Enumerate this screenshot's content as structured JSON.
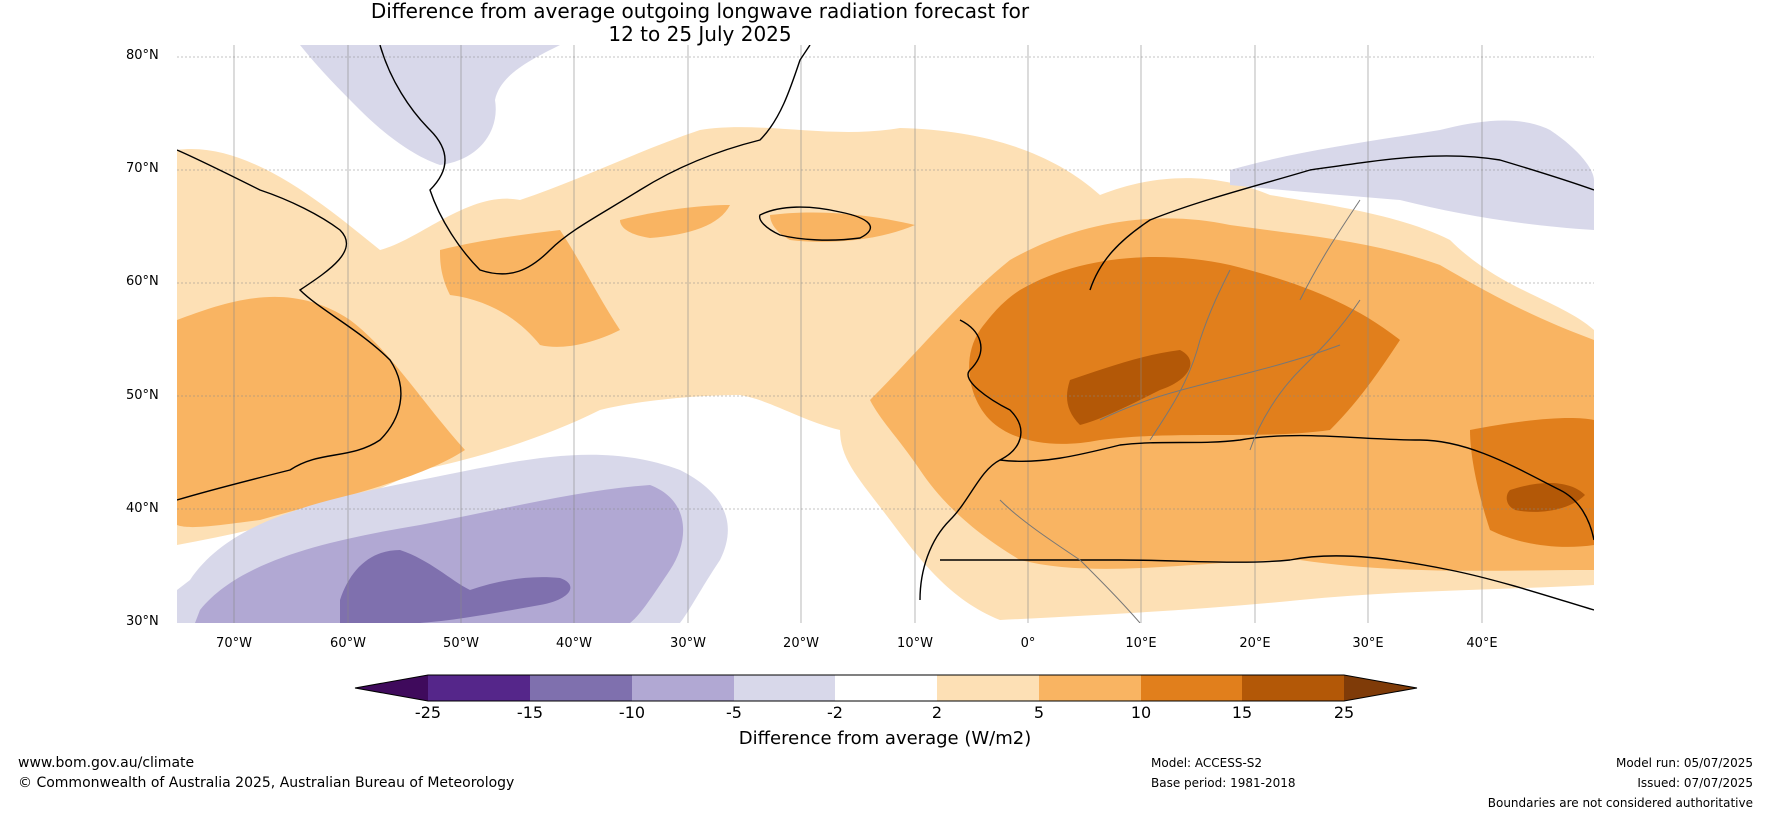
{
  "title": {
    "line1": "Difference from average outgoing longwave radiation forecast for",
    "line2": "12 to 25 July 2025"
  },
  "map": {
    "lat_labels": [
      "80°N",
      "70°N",
      "60°N",
      "50°N",
      "40°N",
      "30°N"
    ],
    "lon_labels": [
      "70°W",
      "60°W",
      "50°W",
      "40°W",
      "30°W",
      "20°W",
      "10°W",
      "0°",
      "10°E",
      "20°E",
      "30°E",
      "40°E"
    ]
  },
  "colorbar": {
    "title": "Difference from average (W/m2)",
    "ticks": [
      "-25",
      "-15",
      "-10",
      "-5",
      "-2",
      "2",
      "5",
      "10",
      "15",
      "25"
    ],
    "colors": [
      "#3f0a5c",
      "#55268a",
      "#7f70ae",
      "#b1a8d3",
      "#d8d8ea",
      "#ffffff",
      "#fde0b5",
      "#f9b462",
      "#e17f1c",
      "#b35807",
      "#7f3b08"
    ]
  },
  "footer": {
    "url": "www.bom.gov.au/climate",
    "copyright": "© Commonwealth of Australia 2025, Australian Bureau of Meteorology",
    "model": "Model: ACCESS-S2",
    "base_period": "Base period: 1981-2018",
    "model_run": "Model run: 05/07/2025",
    "issued": "Issued: 07/07/2025",
    "disclaimer": "Boundaries are not considered authoritative"
  }
}
